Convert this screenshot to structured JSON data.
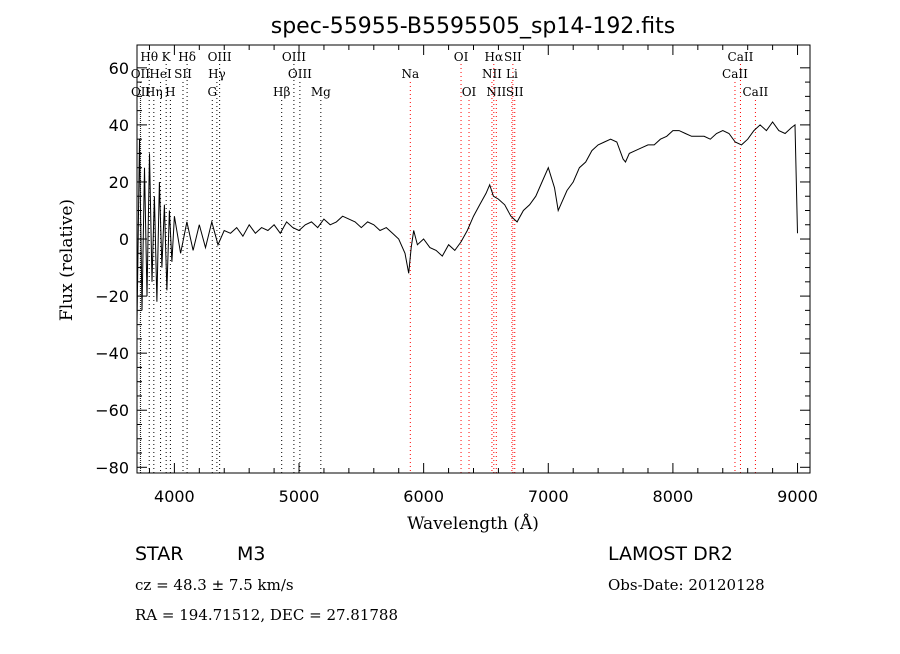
{
  "chart_data": {
    "type": "line",
    "title": "spec-55955-B5595505_sp14-192.fits",
    "xlabel": "Wavelength (Å)",
    "ylabel": "Flux (relative)",
    "xlim": [
      3700,
      9100
    ],
    "ylim": [
      -82,
      68
    ],
    "xticks": [
      4000,
      5000,
      6000,
      7000,
      8000,
      9000
    ],
    "yticks": [
      -80,
      -60,
      -40,
      -20,
      0,
      20,
      40,
      60
    ],
    "grid": false,
    "series": [
      {
        "x": [
          3700,
          3720,
          3740,
          3760,
          3780,
          3800,
          3820,
          3840,
          3860,
          3880,
          3900,
          3920,
          3940,
          3960,
          3980,
          4000,
          4050,
          4100,
          4150,
          4200,
          4250,
          4300,
          4350,
          4400,
          4450,
          4500,
          4550,
          4600,
          4650,
          4700,
          4750,
          4800,
          4850,
          4900,
          4950,
          5000,
          5050,
          5100,
          5150,
          5200,
          5250,
          5300,
          5350,
          5400,
          5450,
          5500,
          5550,
          5600,
          5650,
          5700,
          5750,
          5800,
          5850,
          5880,
          5900,
          5920,
          5950,
          6000,
          6050,
          6100,
          6150,
          6200,
          6250,
          6300,
          6350,
          6400,
          6450,
          6500,
          6530,
          6560,
          6600,
          6650,
          6700,
          6750,
          6800,
          6850,
          6900,
          6950,
          7000,
          7050,
          7080,
          7100,
          7150,
          7200,
          7250,
          7300,
          7350,
          7400,
          7450,
          7500,
          7550,
          7600,
          7620,
          7650,
          7700,
          7750,
          7800,
          7850,
          7900,
          7950,
          8000,
          8050,
          8100,
          8150,
          8200,
          8250,
          8300,
          8350,
          8400,
          8450,
          8500,
          8550,
          8600,
          8650,
          8700,
          8750,
          8800,
          8850,
          8900,
          8950,
          8980,
          9000
        ],
        "y": [
          -30,
          35,
          -25,
          25,
          -20,
          30,
          -15,
          15,
          -22,
          20,
          -10,
          12,
          -18,
          10,
          -8,
          8,
          -5,
          6,
          -4,
          5,
          -3,
          6,
          -2,
          3,
          2,
          4,
          1,
          5,
          2,
          4,
          3,
          5,
          2,
          6,
          4,
          3,
          5,
          6,
          4,
          7,
          5,
          6,
          8,
          7,
          6,
          4,
          6,
          5,
          3,
          4,
          2,
          0,
          -5,
          -12,
          -3,
          3,
          -2,
          0,
          -3,
          -4,
          -6,
          -2,
          -4,
          -1,
          3,
          8,
          12,
          16,
          19,
          15,
          14,
          12,
          8,
          6,
          10,
          12,
          15,
          20,
          25,
          18,
          10,
          12,
          17,
          20,
          25,
          27,
          31,
          33,
          34,
          35,
          34,
          28,
          27,
          30,
          31,
          32,
          33,
          33,
          35,
          36,
          38,
          38,
          37,
          36,
          36,
          36,
          35,
          37,
          38,
          37,
          34,
          33,
          35,
          38,
          40,
          38,
          41,
          38,
          37,
          39,
          40,
          2
        ]
      }
    ],
    "lines": [
      {
        "name": "Hθ",
        "wavelength": 3798,
        "color": "#000000",
        "row": 1
      },
      {
        "name": "K",
        "wavelength": 3934,
        "color": "#000000",
        "row": 1
      },
      {
        "name": "Hδ",
        "wavelength": 4102,
        "color": "#000000",
        "row": 1
      },
      {
        "name": "OIII",
        "wavelength": 4363,
        "color": "#000000",
        "row": 1
      },
      {
        "name": "OIII",
        "wavelength": 4959,
        "color": "#000000",
        "row": 1
      },
      {
        "name": "OI",
        "wavelength": 6300,
        "color": "#ff0000",
        "row": 1
      },
      {
        "name": "Hα",
        "wavelength": 6563,
        "color": "#ff0000",
        "row": 1
      },
      {
        "name": "SII",
        "wavelength": 6716,
        "color": "#ff0000",
        "row": 1
      },
      {
        "name": "CaII",
        "wavelength": 8542,
        "color": "#ff0000",
        "row": 1
      },
      {
        "name": "OII",
        "wavelength": 3727,
        "color": "#000000",
        "row": 2
      },
      {
        "name": "HeI",
        "wavelength": 3889,
        "color": "#000000",
        "row": 2
      },
      {
        "name": "SII",
        "wavelength": 4069,
        "color": "#000000",
        "row": 2
      },
      {
        "name": "Hγ",
        "wavelength": 4341,
        "color": "#000000",
        "row": 2
      },
      {
        "name": "OIII",
        "wavelength": 5007,
        "color": "#000000",
        "row": 2
      },
      {
        "name": "Na",
        "wavelength": 5893,
        "color": "#ff0000",
        "row": 2
      },
      {
        "name": "NII",
        "wavelength": 6548,
        "color": "#ff0000",
        "row": 2
      },
      {
        "name": "Li",
        "wavelength": 6708,
        "color": "#ff0000",
        "row": 2
      },
      {
        "name": "CaII",
        "wavelength": 8498,
        "color": "#ff0000",
        "row": 2
      },
      {
        "name": "OII",
        "wavelength": 3729,
        "color": "#000000",
        "row": 3
      },
      {
        "name": "Hη",
        "wavelength": 3835,
        "color": "#000000",
        "row": 3
      },
      {
        "name": "H",
        "wavelength": 3968,
        "color": "#000000",
        "row": 3
      },
      {
        "name": "G",
        "wavelength": 4304,
        "color": "#000000",
        "row": 3
      },
      {
        "name": "Hβ",
        "wavelength": 4861,
        "color": "#000000",
        "row": 3
      },
      {
        "name": "Mg",
        "wavelength": 5175,
        "color": "#000000",
        "row": 3
      },
      {
        "name": "OI",
        "wavelength": 6364,
        "color": "#ff0000",
        "row": 3
      },
      {
        "name": "NII",
        "wavelength": 6583,
        "color": "#ff0000",
        "row": 3
      },
      {
        "name": "SII",
        "wavelength": 6731,
        "color": "#ff0000",
        "row": 3
      },
      {
        "name": "CaII",
        "wavelength": 8662,
        "color": "#ff0000",
        "row": 3
      }
    ]
  },
  "info": {
    "class_label": "STAR",
    "subclass": "M3",
    "survey": "LAMOST DR2",
    "cz": "cz = 48.3 ± 7.5 km/s",
    "obs_date": "Obs-Date: 20120128",
    "coords": "RA = 194.71512, DEC =  27.81788"
  }
}
